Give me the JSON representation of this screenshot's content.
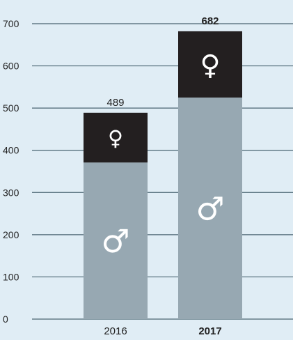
{
  "chart_data": {
    "type": "bar",
    "stacked": true,
    "categories": [
      "2016",
      "2017"
    ],
    "series": [
      {
        "values": [
          371,
          525
        ],
        "color": "#97a8b2",
        "icon": "male-symbol-icon",
        "symbol": "♂"
      },
      {
        "values": [
          118,
          157
        ],
        "color": "#231f20",
        "icon": "female-symbol-icon",
        "symbol": "♀"
      }
    ],
    "totals": [
      "489",
      "682"
    ],
    "bold_categories": [
      false,
      true
    ],
    "y_ticks": [
      "0",
      "100",
      "200",
      "300",
      "400",
      "500",
      "600",
      "700"
    ],
    "ylim": [
      0,
      700
    ],
    "grid": true,
    "colors": {
      "background": "#e0edf5",
      "gridline": "#4a6472",
      "text": "#222222",
      "symbol": "#ffffff"
    }
  }
}
